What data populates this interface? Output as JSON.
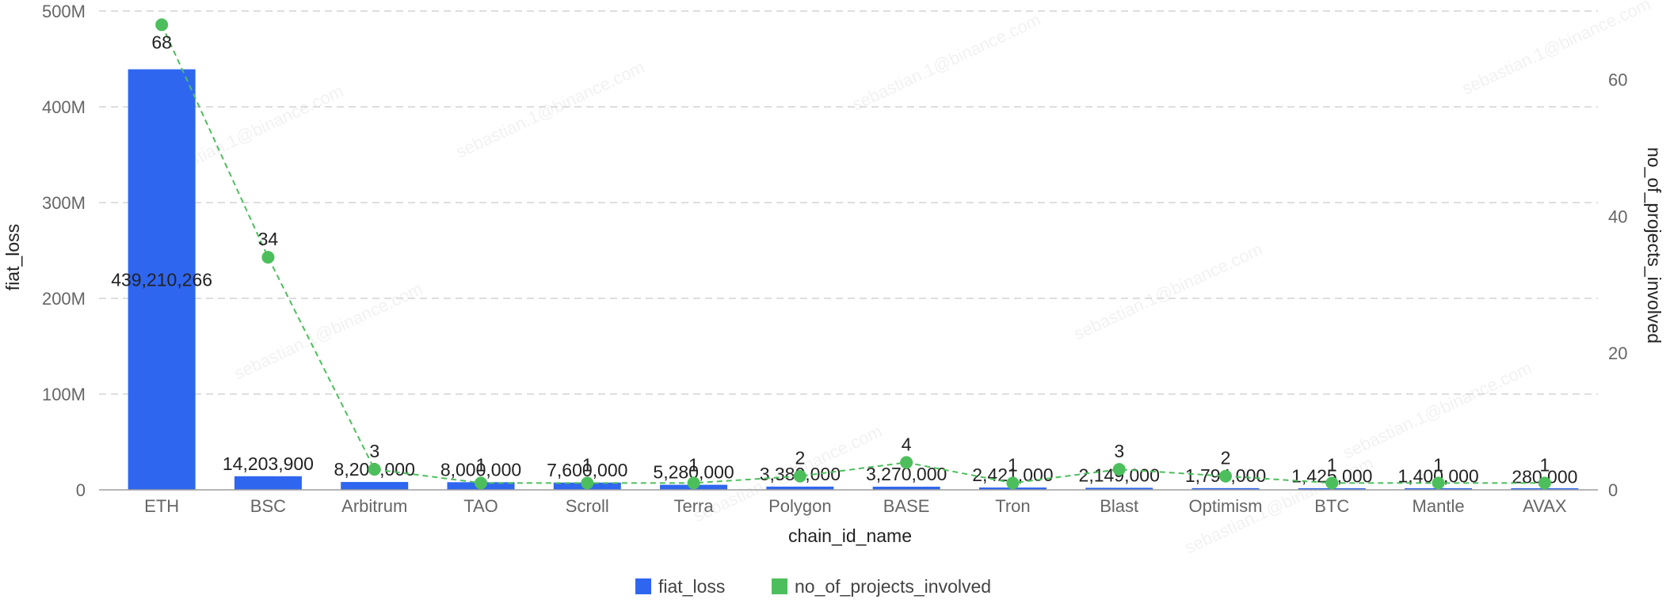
{
  "chart_data": {
    "type": "bar",
    "categories": [
      "ETH",
      "BSC",
      "Arbitrum",
      "TAO",
      "Scroll",
      "Terra",
      "Polygon",
      "BASE",
      "Tron",
      "Blast",
      "Optimism",
      "BTC",
      "Mantle",
      "AVAX"
    ],
    "series": [
      {
        "name": "fiat_loss",
        "type": "bar",
        "axis": "left",
        "color": "#2f66f0",
        "values": [
          439210266,
          14203900,
          8200000,
          8000000,
          7600000,
          5280000,
          3380000,
          3270000,
          2421000,
          2149000,
          1794000,
          1425000,
          1400000,
          280000
        ],
        "labels": [
          "439,210,266",
          "14,203,900",
          "8,200,000",
          "8,000,000",
          "7,600,000",
          "5,280,000",
          "3,380,000",
          "3,270,000",
          "2,421,000",
          "2,149,000",
          "1,794,000",
          "1,425,000",
          "1,400,000",
          "280,000"
        ]
      },
      {
        "name": "no_of_projects_involved",
        "type": "line",
        "axis": "right",
        "color": "#4cbf5c",
        "values": [
          68,
          34,
          3,
          1,
          1,
          1,
          2,
          4,
          1,
          3,
          2,
          1,
          1,
          1
        ]
      }
    ],
    "xlabel": "chain_id_name",
    "ylabel_left": "fiat_loss",
    "ylabel_right": "no_of_projects_involved",
    "ylim_left": [
      0,
      500000000
    ],
    "ylim_right": [
      0,
      70
    ],
    "left_ticks": [
      {
        "value": 0,
        "label": "0"
      },
      {
        "value": 100000000,
        "label": "100M"
      },
      {
        "value": 200000000,
        "label": "200M"
      },
      {
        "value": 300000000,
        "label": "300M"
      },
      {
        "value": 400000000,
        "label": "400M"
      },
      {
        "value": 500000000,
        "label": "500M"
      }
    ],
    "right_ticks": [
      {
        "value": 0,
        "label": "0"
      },
      {
        "value": 20,
        "label": "20"
      },
      {
        "value": 40,
        "label": "40"
      },
      {
        "value": 60,
        "label": "60"
      }
    ],
    "grid": true,
    "legend_position": "bottom-center",
    "watermark_text": "sebastian.1@binance.com"
  }
}
